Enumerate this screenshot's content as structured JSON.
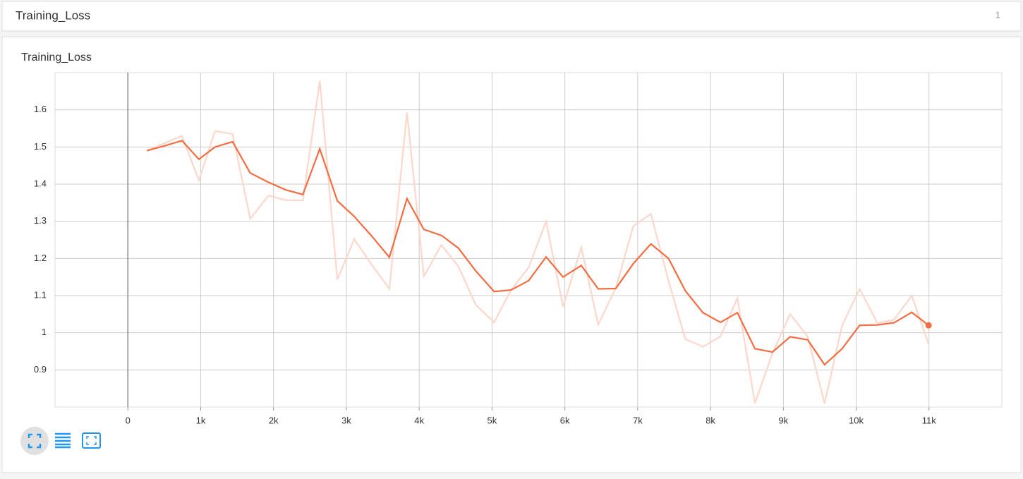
{
  "header": {
    "title": "Training_Loss",
    "count": "1"
  },
  "chart_data": {
    "type": "line",
    "title": "Training_Loss",
    "x": [
      261,
      502,
      743,
      975,
      1197,
      1438,
      1680,
      1931,
      2162,
      2403,
      2635,
      2876,
      3108,
      3349,
      3591,
      3832,
      4064,
      4305,
      4537,
      4778,
      5029,
      5261,
      5502,
      5743,
      5975,
      6226,
      6458,
      6699,
      6940,
      7181,
      7423,
      7654,
      7896,
      8137,
      8369,
      8610,
      8851,
      9093,
      9334,
      9566,
      9807,
      10048,
      10290,
      10521,
      10763,
      10994
    ],
    "series": [
      {
        "color": "#fcd7cc",
        "values": [
          1.49,
          1.51,
          1.53,
          1.41,
          1.543,
          1.535,
          1.307,
          1.369,
          1.357,
          1.356,
          1.678,
          1.143,
          1.252,
          1.183,
          1.118,
          1.593,
          1.152,
          1.236,
          1.179,
          1.075,
          1.028,
          1.115,
          1.175,
          1.3,
          1.07,
          1.23,
          1.022,
          1.12,
          1.287,
          1.32,
          1.14,
          0.983,
          0.962,
          0.99,
          1.093,
          0.81,
          0.945,
          1.05,
          0.99,
          0.81,
          1.02,
          1.118,
          1.026,
          1.035,
          1.1,
          0.97
        ]
      },
      {
        "color": "#f26d42",
        "values": [
          1.49,
          1.503,
          1.517,
          1.467,
          1.5,
          1.514,
          1.43,
          1.405,
          1.385,
          1.372,
          1.495,
          1.355,
          1.313,
          1.26,
          1.203,
          1.361,
          1.278,
          1.262,
          1.228,
          1.166,
          1.111,
          1.115,
          1.14,
          1.204,
          1.15,
          1.181,
          1.118,
          1.119,
          1.186,
          1.239,
          1.2,
          1.113,
          1.054,
          1.028,
          1.054,
          0.957,
          0.948,
          0.989,
          0.981,
          0.914,
          0.957,
          1.02,
          1.021,
          1.027,
          1.055,
          1.02
        ]
      }
    ],
    "xlim": [
      -1000,
      12000
    ],
    "xticks": [
      0,
      {
        "value": 1000,
        "label": "1k"
      },
      {
        "value": 2000,
        "label": "2k"
      },
      {
        "value": 3000,
        "label": "3k"
      },
      {
        "value": 4000,
        "label": "4k"
      },
      {
        "value": 5000,
        "label": "5k"
      },
      {
        "value": 6000,
        "label": "6k"
      },
      {
        "value": 7000,
        "label": "7k"
      },
      {
        "value": 8000,
        "label": "8k"
      },
      {
        "value": 9000,
        "label": "9k"
      },
      {
        "value": 10000,
        "label": "10k"
      },
      {
        "value": 11000,
        "label": "11k"
      }
    ],
    "ylim": [
      0.8,
      1.7
    ],
    "yticks": [
      0.9,
      1,
      1.1,
      1.2,
      1.3,
      1.4,
      1.5,
      1.6
    ],
    "grid": true
  }
}
